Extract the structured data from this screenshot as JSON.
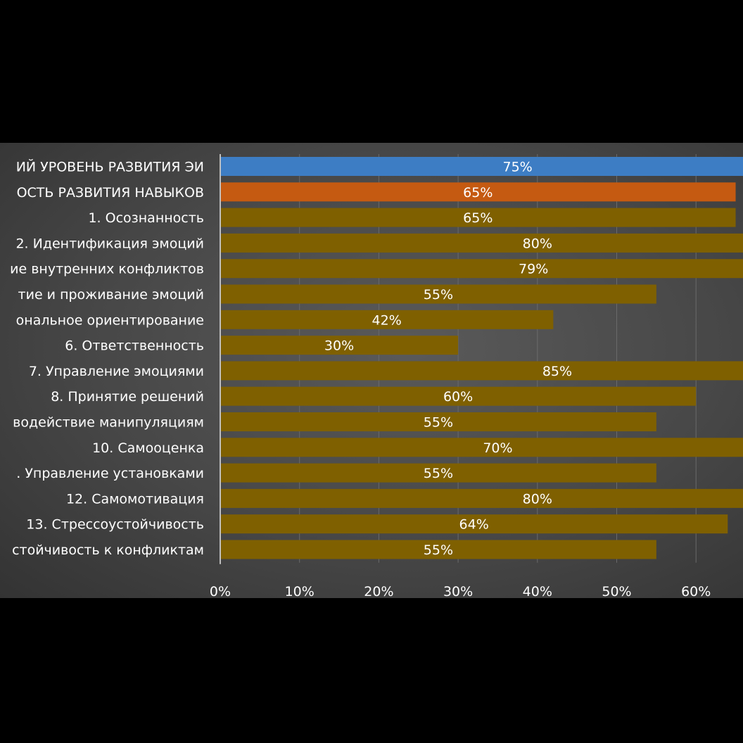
{
  "chart_data": {
    "type": "bar",
    "orientation": "horizontal",
    "categories": [
      "ИЙ УРОВЕНЬ РАЗВИТИЯ ЭИ",
      "ОСТЬ РАЗВИТИЯ НАВЫКОВ",
      "1. Осознанность",
      "2. Идентификация эмоций",
      "ие внутренних конфликтов",
      "тие и проживание эмоций",
      "ональное ориентирование",
      "6. Ответственность",
      "7. Управление эмоциями",
      "8. Принятие решений",
      "водействие манипуляциям",
      "10. Самооценка",
      ". Управление установками",
      "12. Самомотивация",
      "13. Стрессоустойчивость",
      "стойчивость к конфликтам"
    ],
    "values": [
      75,
      65,
      65,
      80,
      79,
      55,
      42,
      30,
      85,
      60,
      55,
      70,
      55,
      80,
      64,
      55
    ],
    "value_labels": [
      "75%",
      "65%",
      "65%",
      "80%",
      "79%",
      "55%",
      "42%",
      "30%",
      "85%",
      "60%",
      "55%",
      "70%",
      "55%",
      "80%",
      "64%",
      "55%"
    ],
    "bar_colors": [
      "#3d7dc4",
      "#c55a11",
      "#7f6000",
      "#7f6000",
      "#7f6000",
      "#7f6000",
      "#7f6000",
      "#7f6000",
      "#7f6000",
      "#7f6000",
      "#7f6000",
      "#7f6000",
      "#7f6000",
      "#7f6000",
      "#7f6000",
      "#7f6000"
    ],
    "x_ticks": [
      0,
      10,
      20,
      30,
      40,
      50,
      60
    ],
    "x_tick_labels": [
      "0%",
      "10%",
      "20%",
      "30%",
      "40%",
      "50%",
      "60%"
    ],
    "xlim": [
      0,
      100
    ],
    "grid": true,
    "title": "",
    "xlabel": "",
    "ylabel": ""
  },
  "colors": {
    "background": "#000000",
    "panel": "#4a4a4a",
    "gridline": "#6a6a6a",
    "text": "#ffffff"
  }
}
